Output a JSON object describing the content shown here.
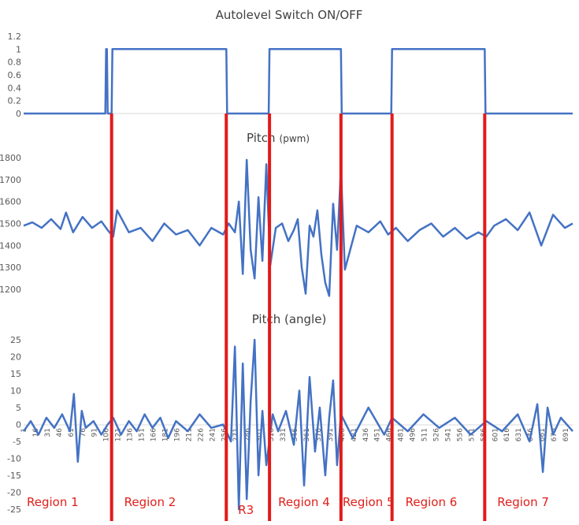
{
  "colors": {
    "series": "#4472c4",
    "divider": "#e21a1a",
    "region_label": "#e0201b",
    "axis": "#d9d9d9",
    "tick": "#595959"
  },
  "chart_data": [
    {
      "type": "line",
      "title": "Autolevel Switch ON/OFF",
      "ylim": [
        0,
        1.2
      ],
      "yticks": [
        "0",
        "0.2",
        "0.4",
        "0.6",
        "0.8",
        "1",
        "1.2"
      ],
      "xlim": [
        1,
        700
      ],
      "series": [
        {
          "x": [
            1,
            105,
            106,
            107,
            108,
            109,
            113,
            114,
            115,
            259,
            260,
            261,
            313,
            314,
            315,
            405,
            406,
            407,
            469,
            470,
            471,
            588,
            589,
            590,
            700
          ],
          "values": [
            0,
            0,
            1,
            1,
            0,
            0,
            0,
            1,
            1,
            1,
            0,
            0,
            0,
            1,
            1,
            1,
            0,
            0,
            0,
            1,
            1,
            1,
            0,
            0,
            0
          ]
        }
      ]
    },
    {
      "type": "line",
      "title": "Pitch",
      "title_unit": "(pwm)",
      "ylim": [
        1150,
        1800
      ],
      "yticks": [
        "1200",
        "1300",
        "1400",
        "1500",
        "1600",
        "1700",
        "1800"
      ],
      "xlim": [
        1,
        700
      ],
      "series": [
        {
          "x": [
            1,
            12,
            24,
            36,
            48,
            55,
            64,
            76,
            88,
            100,
            108,
            115,
            120,
            135,
            150,
            165,
            180,
            195,
            210,
            225,
            240,
            255,
            262,
            270,
            275,
            280,
            285,
            290,
            295,
            300,
            305,
            310,
            315,
            322,
            330,
            338,
            345,
            350,
            355,
            360,
            365,
            370,
            375,
            380,
            385,
            390,
            395,
            400,
            405,
            410,
            425,
            440,
            455,
            465,
            475,
            490,
            505,
            520,
            535,
            550,
            565,
            580,
            590,
            600,
            615,
            630,
            645,
            660,
            675,
            690,
            700
          ],
          "values": [
            1490,
            1505,
            1480,
            1520,
            1475,
            1550,
            1460,
            1530,
            1480,
            1510,
            1470,
            1440,
            1560,
            1460,
            1480,
            1420,
            1500,
            1450,
            1470,
            1400,
            1480,
            1450,
            1500,
            1460,
            1600,
            1270,
            1790,
            1380,
            1250,
            1620,
            1330,
            1770,
            1310,
            1480,
            1500,
            1420,
            1470,
            1520,
            1300,
            1180,
            1490,
            1440,
            1560,
            1360,
            1230,
            1170,
            1590,
            1380,
            1750,
            1290,
            1490,
            1460,
            1510,
            1450,
            1480,
            1420,
            1470,
            1500,
            1440,
            1480,
            1430,
            1460,
            1440,
            1490,
            1520,
            1470,
            1550,
            1400,
            1540,
            1480,
            1500
          ]
        }
      ]
    },
    {
      "type": "line",
      "title": "Pitch (angle)",
      "ylim": [
        -25,
        25
      ],
      "yticks": [
        "-25",
        "-20",
        "-15",
        "-10",
        "-5",
        "0",
        "5",
        "10",
        "15",
        "20",
        "25"
      ],
      "xlim": [
        1,
        700
      ],
      "xticks": [
        "1",
        "16",
        "31",
        "46",
        "61",
        "76",
        "91",
        "106",
        "121",
        "136",
        "151",
        "166",
        "181",
        "196",
        "211",
        "226",
        "241",
        "256",
        "271",
        "286",
        "301",
        "316",
        "331",
        "346",
        "361",
        "376",
        "391",
        "406",
        "421",
        "436",
        "451",
        "466",
        "481",
        "496",
        "511",
        "526",
        "541",
        "556",
        "571",
        "586",
        "601",
        "616",
        "631",
        "646",
        "661",
        "676",
        "691"
      ],
      "series": [
        {
          "x": [
            1,
            10,
            20,
            30,
            40,
            50,
            60,
            65,
            70,
            75,
            80,
            90,
            100,
            108,
            115,
            125,
            135,
            145,
            155,
            165,
            175,
            185,
            195,
            210,
            225,
            240,
            255,
            265,
            270,
            275,
            280,
            285,
            290,
            295,
            300,
            305,
            310,
            318,
            325,
            335,
            345,
            352,
            358,
            365,
            372,
            378,
            385,
            390,
            395,
            400,
            405,
            420,
            440,
            460,
            470,
            490,
            510,
            530,
            550,
            570,
            590,
            610,
            630,
            645,
            655,
            662,
            668,
            675,
            685,
            700
          ],
          "values": [
            -2,
            1,
            -3,
            2,
            -1,
            3,
            -2,
            9,
            -11,
            4,
            -1,
            1,
            -3,
            0,
            2,
            -3,
            1,
            -2,
            3,
            -1,
            2,
            -4,
            1,
            -2,
            3,
            -1,
            0,
            -5,
            23,
            -25,
            18,
            -22,
            7,
            25,
            -15,
            4,
            -12,
            3,
            -2,
            4,
            -6,
            10,
            -18,
            14,
            -8,
            5,
            -15,
            2,
            13,
            -12,
            3,
            -4,
            5,
            -3,
            2,
            -2,
            3,
            -1,
            2,
            -3,
            1,
            -2,
            3,
            -5,
            6,
            -14,
            5,
            -3,
            2,
            -2
          ]
        }
      ]
    }
  ],
  "dividers_x": [
    113,
    259,
    314,
    405,
    470,
    588
  ],
  "regions": [
    {
      "label": "Region 1",
      "x": 3
    },
    {
      "label": "Region 2",
      "x": 127
    },
    {
      "label": "R3",
      "x": 272
    },
    {
      "label": "Region 4",
      "x": 323
    },
    {
      "label": "Region 5",
      "x": 405
    },
    {
      "label": "Region 6",
      "x": 485
    },
    {
      "label": "Region 7",
      "x": 602
    }
  ]
}
